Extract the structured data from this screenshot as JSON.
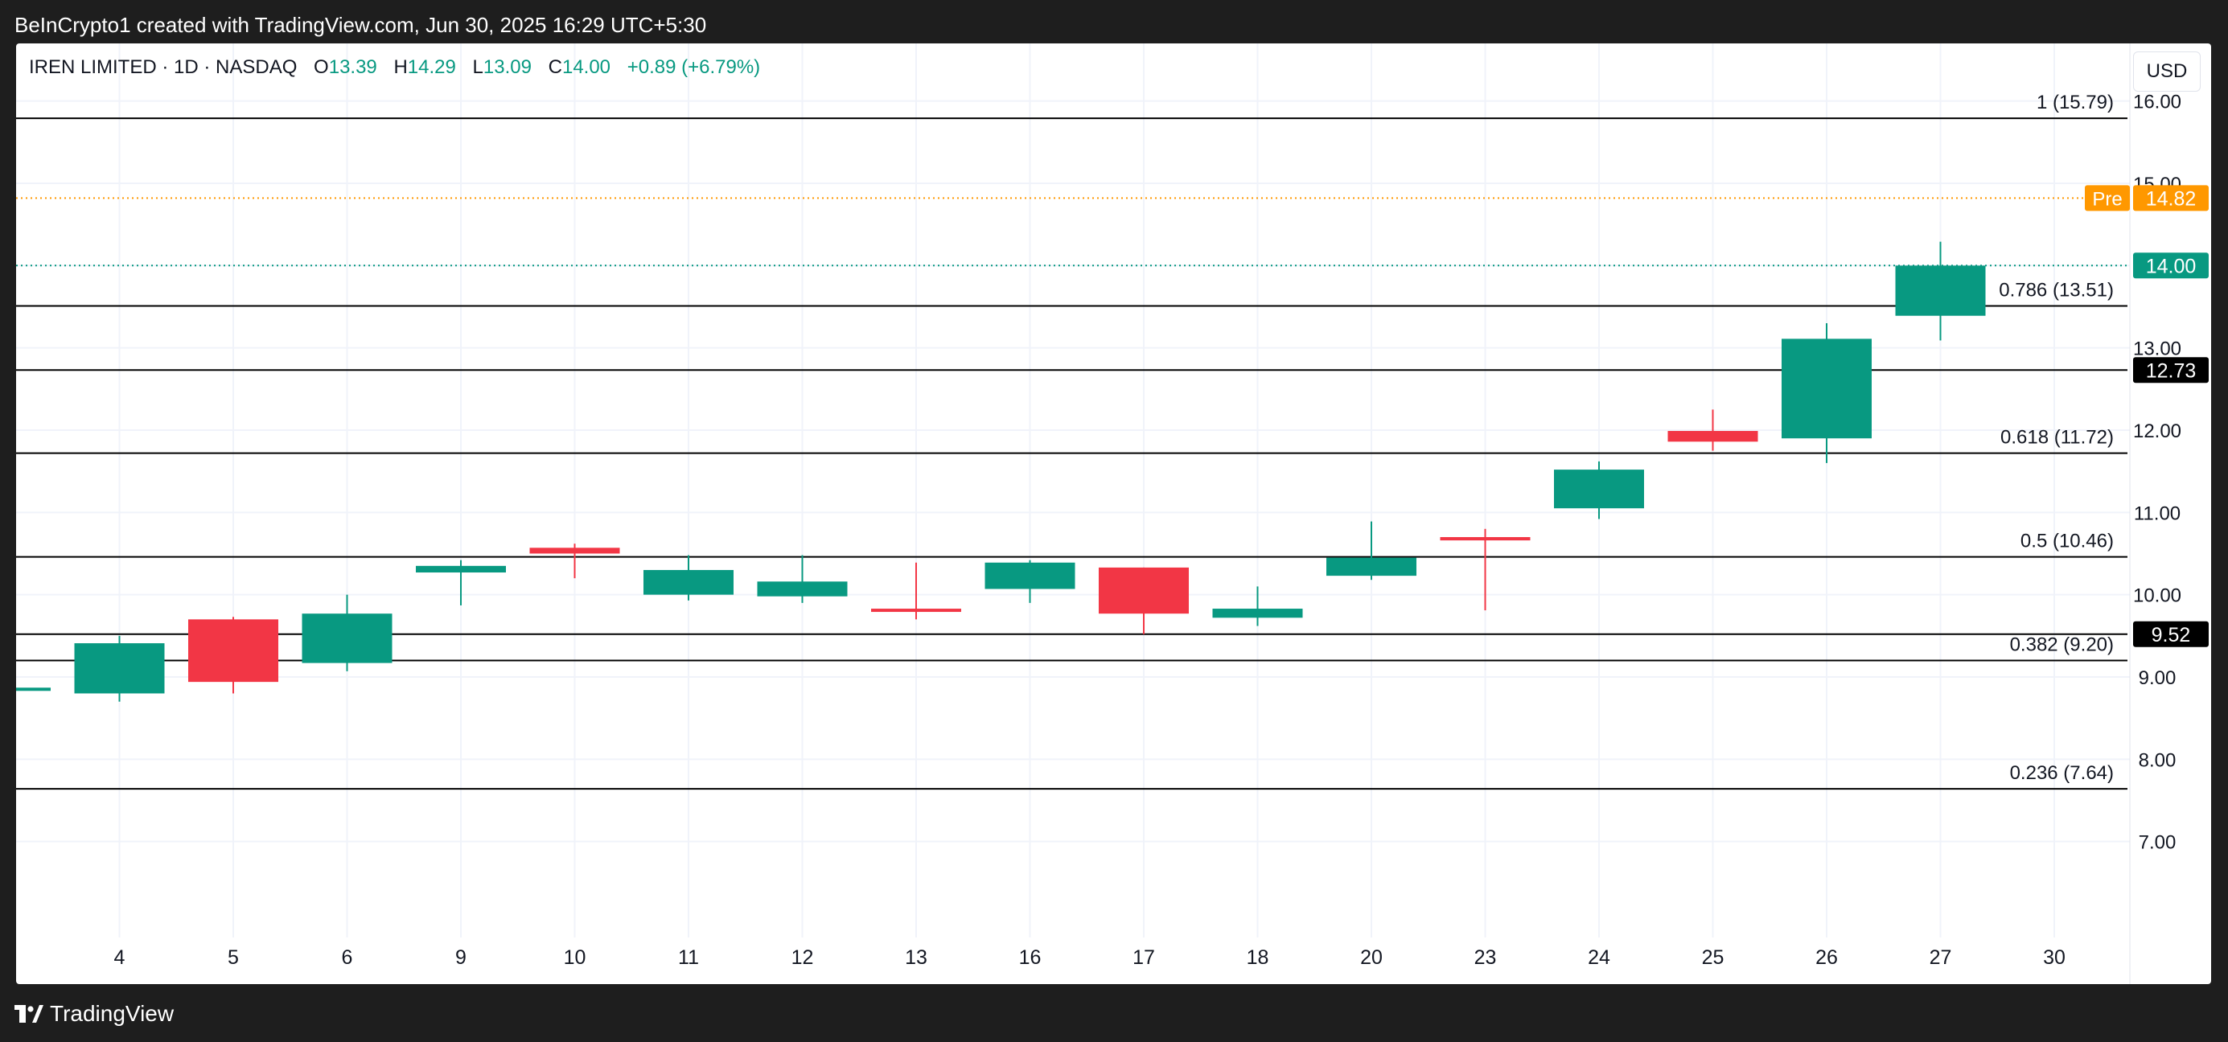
{
  "header": {
    "caption": "BeInCrypto1 created with TradingView.com, Jun 30, 2025 16:29 UTC+5:30"
  },
  "legend": {
    "symbol": "IREN LIMITED · 1D · NASDAQ",
    "open_label": "O",
    "open": "13.39",
    "high_label": "H",
    "high": "14.29",
    "low_label": "L",
    "low": "13.09",
    "close_label": "C",
    "close": "14.00",
    "change": "+0.89 (+6.79%)"
  },
  "currency_button": "USD",
  "footer": {
    "brand": "TradingView"
  },
  "colors": {
    "up": "#089981",
    "down": "#f23645",
    "pre": "#ff9800",
    "fib_line": "#000000",
    "grid": "#f0f3fa"
  },
  "chart_data": {
    "type": "candlestick",
    "x_tick_labels": [
      "4",
      "5",
      "6",
      "9",
      "10",
      "11",
      "12",
      "13",
      "16",
      "17",
      "18",
      "20",
      "23",
      "24",
      "25",
      "26",
      "27",
      "30"
    ],
    "y_ticks": [
      "7.00",
      "8.00",
      "9.00",
      "10.00",
      "11.00",
      "12.00",
      "13.00",
      "14.00",
      "15.00",
      "16.00"
    ],
    "ylim": [
      6.0,
      16.7
    ],
    "candles": [
      {
        "date": "3",
        "open": 8.84,
        "high": 8.88,
        "low": 8.82,
        "close": 8.87
      },
      {
        "date": "4",
        "open": 8.8,
        "high": 9.5,
        "low": 8.7,
        "close": 9.41
      },
      {
        "date": "5",
        "open": 9.7,
        "high": 9.73,
        "low": 8.8,
        "close": 8.94
      },
      {
        "date": "6",
        "open": 9.17,
        "high": 10.0,
        "low": 9.07,
        "close": 9.77
      },
      {
        "date": "9",
        "open": 10.27,
        "high": 10.42,
        "low": 9.87,
        "close": 10.35
      },
      {
        "date": "10",
        "open": 10.57,
        "high": 10.62,
        "low": 10.2,
        "close": 10.5
      },
      {
        "date": "11",
        "open": 10.0,
        "high": 10.48,
        "low": 9.93,
        "close": 10.3
      },
      {
        "date": "12",
        "open": 9.98,
        "high": 10.48,
        "low": 9.9,
        "close": 10.16
      },
      {
        "date": "13",
        "open": 9.83,
        "high": 10.39,
        "low": 9.7,
        "close": 9.81
      },
      {
        "date": "16",
        "open": 10.07,
        "high": 10.42,
        "low": 9.9,
        "close": 10.39
      },
      {
        "date": "17",
        "open": 10.33,
        "high": 10.33,
        "low": 9.52,
        "close": 9.77
      },
      {
        "date": "18",
        "open": 9.72,
        "high": 10.1,
        "low": 9.62,
        "close": 9.83
      },
      {
        "date": "20",
        "open": 10.23,
        "high": 10.89,
        "low": 10.18,
        "close": 10.45
      },
      {
        "date": "23",
        "open": 10.7,
        "high": 10.8,
        "low": 9.81,
        "close": 10.66
      },
      {
        "date": "24",
        "open": 11.05,
        "high": 11.62,
        "low": 10.92,
        "close": 11.52
      },
      {
        "date": "25",
        "open": 11.99,
        "high": 12.25,
        "low": 11.75,
        "close": 11.86
      },
      {
        "date": "26",
        "open": 11.9,
        "high": 13.3,
        "low": 11.6,
        "close": 13.11
      },
      {
        "date": "27",
        "open": 13.39,
        "high": 14.29,
        "low": 13.09,
        "close": 14.0
      }
    ],
    "fib_levels": [
      {
        "ratio_label": "1 (15.79)",
        "value": 15.79
      },
      {
        "ratio_label": "0.786 (13.51)",
        "value": 13.51
      },
      {
        "ratio_label": "0.618 (11.72)",
        "value": 11.72
      },
      {
        "ratio_label": "0.5 (10.46)",
        "value": 10.46
      },
      {
        "ratio_label": "0.382 (9.20)",
        "value": 9.2
      },
      {
        "ratio_label": "0.236 (7.64)",
        "value": 7.64
      }
    ],
    "horizontal_levels": [
      {
        "value": 12.73,
        "label": "12.73"
      },
      {
        "value": 9.52,
        "label": "9.52"
      }
    ],
    "premarket": {
      "label": "Pre",
      "value": 14.82,
      "value_label": "14.82"
    },
    "last_price": {
      "value": 14.0,
      "label": "14.00"
    }
  }
}
